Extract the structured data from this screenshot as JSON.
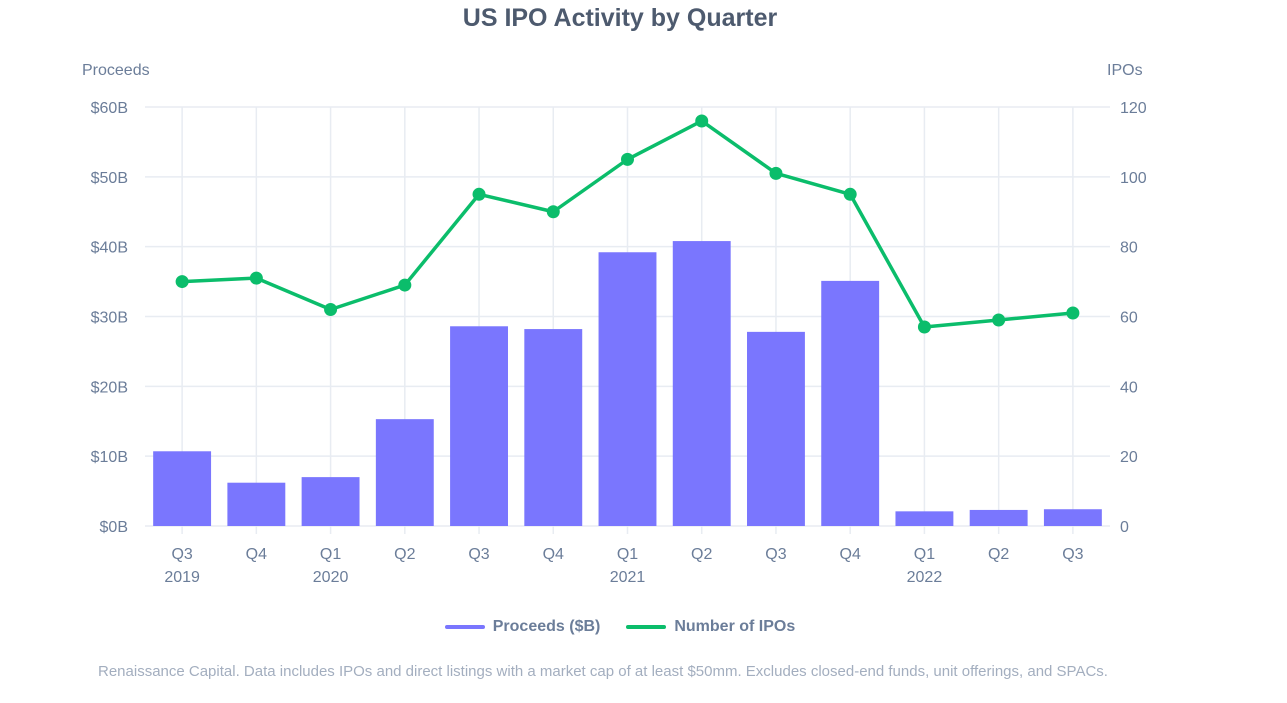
{
  "chart_data": {
    "type": "bar+line",
    "title": "US IPO Activity by Quarter",
    "ylabel_left": "Proceeds",
    "ylabel_right": "IPOs",
    "categories": [
      "Q3",
      "Q4",
      "Q1",
      "Q2",
      "Q3",
      "Q4",
      "Q1",
      "Q2",
      "Q3",
      "Q4",
      "Q1",
      "Q2",
      "Q3"
    ],
    "year_labels": [
      "2019",
      "",
      "2020",
      "",
      "",
      "",
      "2021",
      "",
      "",
      "",
      "2022",
      "",
      ""
    ],
    "yticks_left": [
      "$0B",
      "$10B",
      "$20B",
      "$30B",
      "$40B",
      "$50B",
      "$60B"
    ],
    "yticks_right": [
      "0",
      "20",
      "40",
      "60",
      "80",
      "100",
      "120"
    ],
    "ylim_left": [
      0,
      60
    ],
    "ylim_right": [
      0,
      120
    ],
    "grid": true,
    "legend_position": "bottom",
    "series": [
      {
        "name": "Proceeds ($B)",
        "type": "bar",
        "axis": "left",
        "color": "#7a76fe",
        "values": [
          10.7,
          6.2,
          7.0,
          15.3,
          28.6,
          28.2,
          39.2,
          40.8,
          27.8,
          35.1,
          2.1,
          2.3,
          2.4
        ]
      },
      {
        "name": "Number of IPOs",
        "type": "line",
        "axis": "right",
        "color": "#0bbd6b",
        "values": [
          70,
          71,
          62,
          69,
          95,
          90,
          105,
          116,
          101,
          95,
          57,
          59,
          61
        ]
      }
    ]
  },
  "footnote": "Renaissance Capital. Data includes IPOs and direct listings with a market cap of at least $50mm. Excludes closed-end funds, unit offerings, and SPACs."
}
